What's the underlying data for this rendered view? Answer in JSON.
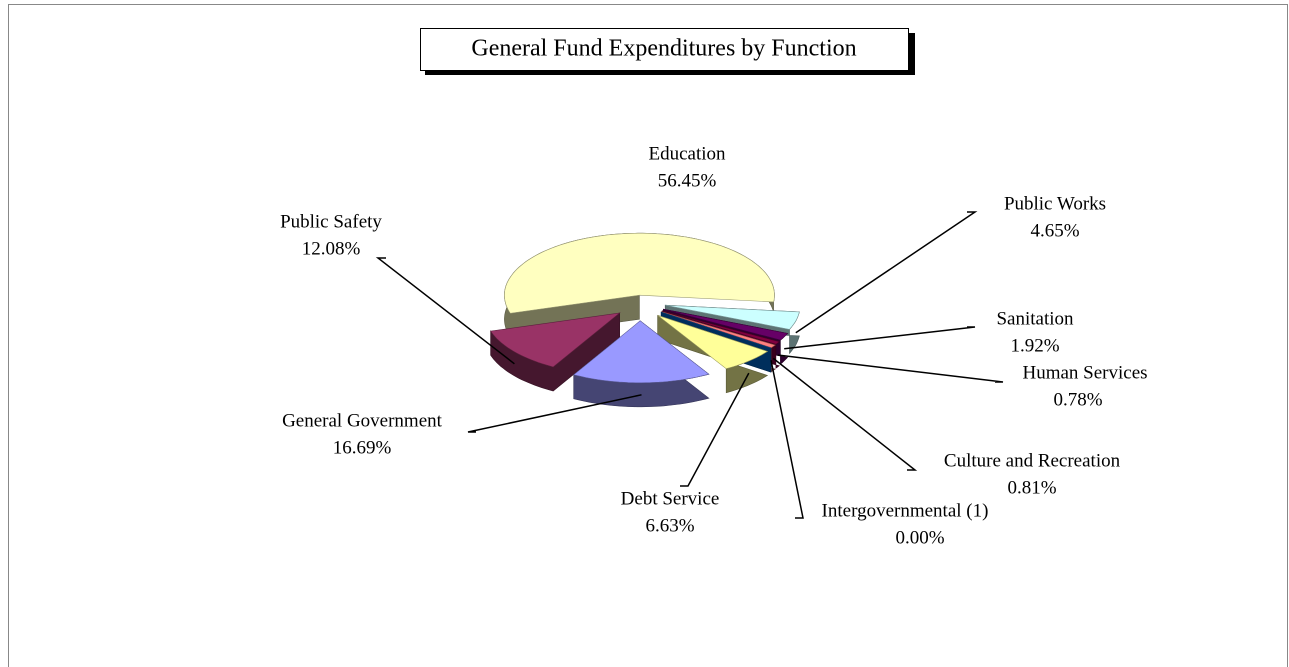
{
  "chart_data": {
    "type": "pie",
    "title": "General Fund Expenditures by Function",
    "categories": [
      "Education",
      "Public Works",
      "Sanitation",
      "Human Services",
      "Culture and Recreation",
      "Intergovernmental (1)",
      "Debt Service",
      "General Government",
      "Public Safety"
    ],
    "values": [
      56.45,
      4.65,
      1.92,
      0.78,
      0.81,
      0.0,
      6.63,
      16.69,
      12.08
    ],
    "value_labels": [
      "56.45%",
      "4.65%",
      "1.92%",
      "0.78%",
      "0.81%",
      "0.00%",
      "6.63%",
      "16.69%",
      "12.08%"
    ],
    "colors": [
      "#ffffc0",
      "#ccffff",
      "#660066",
      "#800040",
      "#ff8080",
      "#0066cc",
      "#ffff99",
      "#9999ff",
      "#993366"
    ]
  }
}
